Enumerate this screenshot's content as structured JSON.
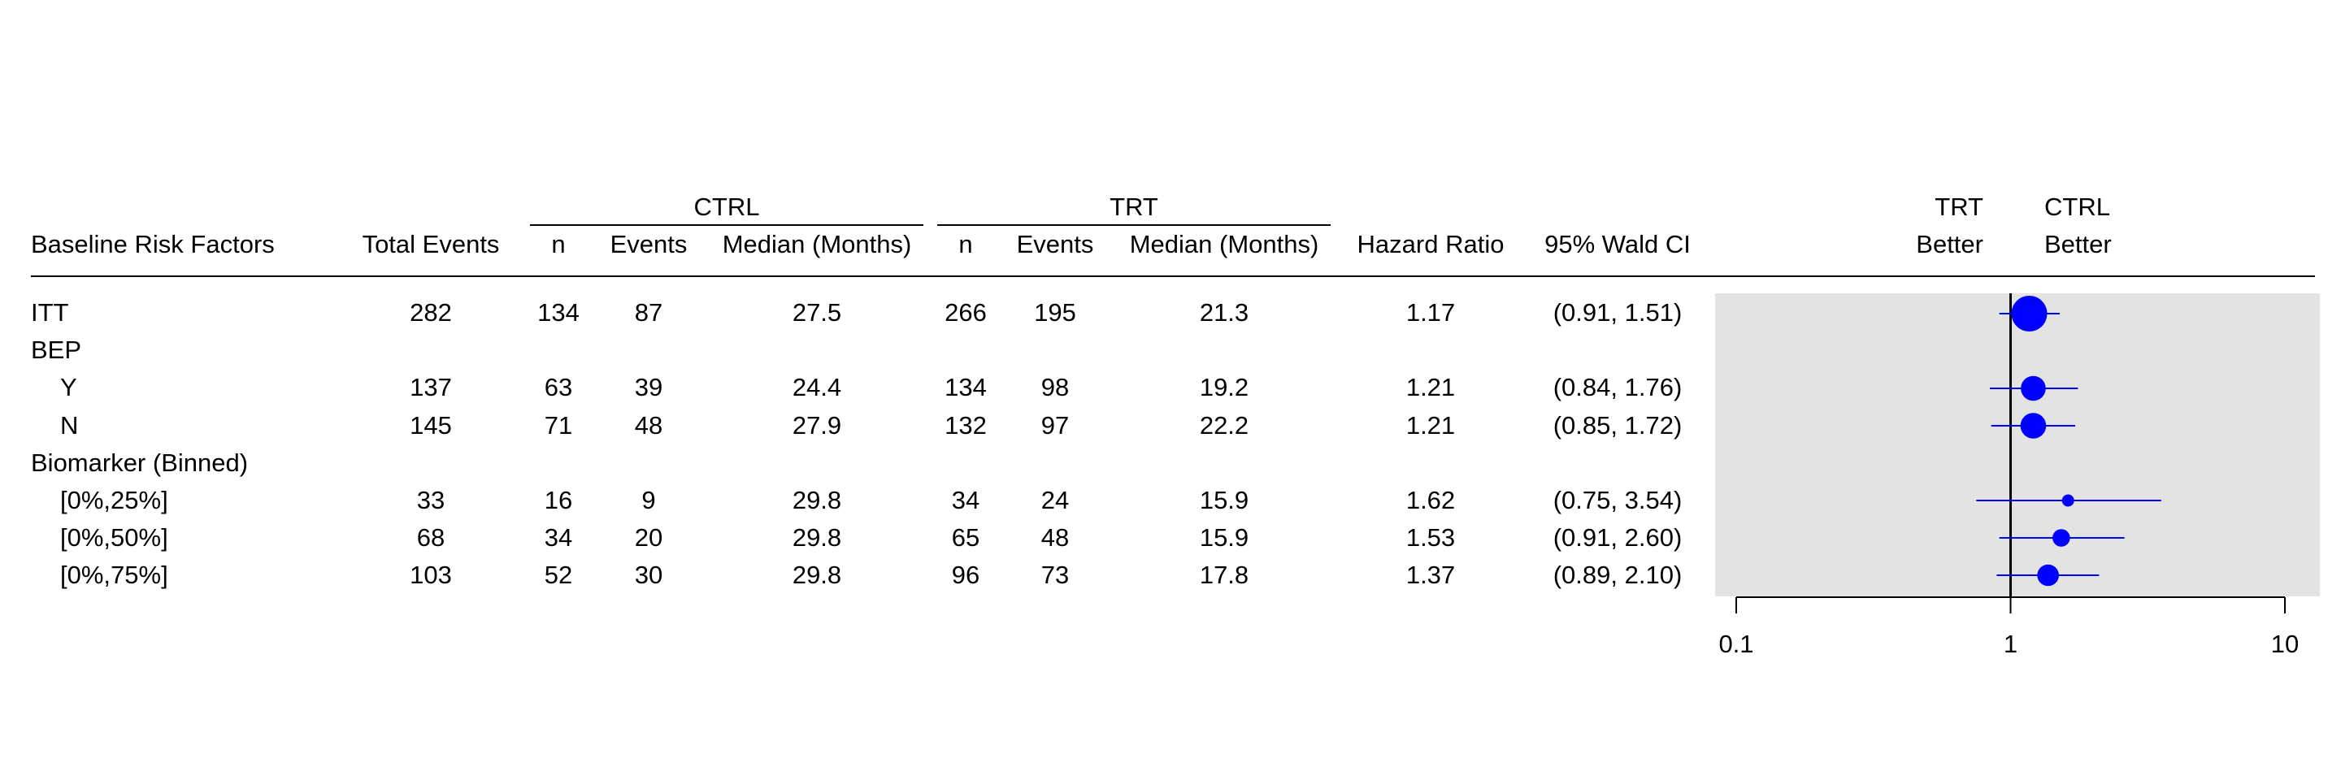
{
  "header": {
    "group_ctrl": "CTRL",
    "group_trt": "TRT",
    "col_factor": "Baseline Risk Factors",
    "col_total": "Total Events",
    "col_n": "n",
    "col_events": "Events",
    "col_median": "Median (Months)",
    "col_hr": "Hazard Ratio",
    "col_ci": "95% Wald CI",
    "better_trt_1": "TRT",
    "better_trt_2": "Better",
    "better_ctrl_1": "CTRL",
    "better_ctrl_2": "Better"
  },
  "rows": [
    {
      "label": "ITT",
      "indent": false,
      "total": "282",
      "ctrl_n": "134",
      "ctrl_events": "87",
      "ctrl_median": "27.5",
      "trt_n": "266",
      "trt_events": "195",
      "trt_median": "21.3",
      "hr": "1.17",
      "ci": "(0.91, 1.51)"
    },
    {
      "label": "BEP",
      "indent": false,
      "total": "",
      "ctrl_n": "",
      "ctrl_events": "",
      "ctrl_median": "",
      "trt_n": "",
      "trt_events": "",
      "trt_median": "",
      "hr": "",
      "ci": ""
    },
    {
      "label": "Y",
      "indent": true,
      "total": "137",
      "ctrl_n": "63",
      "ctrl_events": "39",
      "ctrl_median": "24.4",
      "trt_n": "134",
      "trt_events": "98",
      "trt_median": "19.2",
      "hr": "1.21",
      "ci": "(0.84, 1.76)"
    },
    {
      "label": "N",
      "indent": true,
      "total": "145",
      "ctrl_n": "71",
      "ctrl_events": "48",
      "ctrl_median": "27.9",
      "trt_n": "132",
      "trt_events": "97",
      "trt_median": "22.2",
      "hr": "1.21",
      "ci": "(0.85, 1.72)"
    },
    {
      "label": "Biomarker (Binned)",
      "indent": false,
      "total": "",
      "ctrl_n": "",
      "ctrl_events": "",
      "ctrl_median": "",
      "trt_n": "",
      "trt_events": "",
      "trt_median": "",
      "hr": "",
      "ci": ""
    },
    {
      "label": "[0%,25%]",
      "indent": true,
      "total": "33",
      "ctrl_n": "16",
      "ctrl_events": "9",
      "ctrl_median": "29.8",
      "trt_n": "34",
      "trt_events": "24",
      "trt_median": "15.9",
      "hr": "1.62",
      "ci": "(0.75, 3.54)"
    },
    {
      "label": "[0%,50%]",
      "indent": true,
      "total": "68",
      "ctrl_n": "34",
      "ctrl_events": "20",
      "ctrl_median": "29.8",
      "trt_n": "65",
      "trt_events": "48",
      "trt_median": "15.9",
      "hr": "1.53",
      "ci": "(0.91, 2.60)"
    },
    {
      "label": "[0%,75%]",
      "indent": true,
      "total": "103",
      "ctrl_n": "52",
      "ctrl_events": "30",
      "ctrl_median": "29.8",
      "trt_n": "96",
      "trt_events": "73",
      "trt_median": "17.8",
      "hr": "1.37",
      "ci": "(0.89, 2.10)"
    }
  ],
  "chart_data": {
    "type": "scatter",
    "subtype": "forest",
    "x_scale": "log",
    "xlim": [
      0.1,
      10
    ],
    "x_ticks": [
      "0.1",
      "1",
      "10"
    ],
    "reference_line": 1,
    "panel_color": "#e3e3e3",
    "marker_color": "#0000ff",
    "categories": [
      "ITT",
      "BEP",
      "Y",
      "N",
      "Biomarker (Binned)",
      "[0%,25%]",
      "[0%,50%]",
      "[0%,75%]"
    ],
    "series": [
      {
        "values": [
          1.17,
          null,
          1.21,
          1.21,
          null,
          1.62,
          1.53,
          1.37
        ],
        "lower": [
          0.91,
          null,
          0.84,
          0.85,
          null,
          0.75,
          0.91,
          0.89
        ],
        "upper": [
          1.51,
          null,
          1.76,
          1.72,
          null,
          3.54,
          2.6,
          2.1
        ],
        "weights": [
          282,
          null,
          137,
          145,
          null,
          33,
          68,
          103
        ]
      }
    ]
  }
}
